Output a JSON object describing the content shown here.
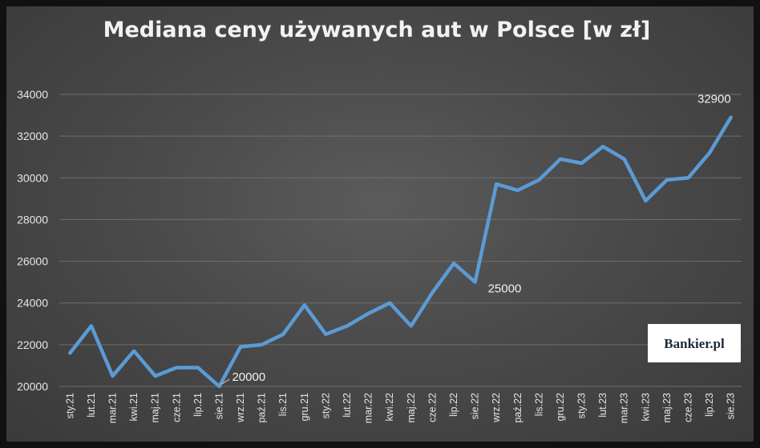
{
  "watermark": "Bankier.pl",
  "chart_data": {
    "type": "line",
    "title": "Mediana ceny używanych aut w Polsce [w zł]",
    "xlabel": "",
    "ylabel": "",
    "ylim": [
      20000,
      34000
    ],
    "yticks": [
      20000,
      22000,
      24000,
      26000,
      28000,
      30000,
      32000,
      34000
    ],
    "ytick_labels": [
      "20000",
      "22000",
      "24000",
      "26000",
      "28000",
      "30000",
      "32000",
      "34000"
    ],
    "grid": true,
    "legend": "none",
    "line_color": "#5b9bd5",
    "categories": [
      "sty.21",
      "lut.21",
      "mar.21",
      "kwi.21",
      "maj.21",
      "cze.21",
      "lip.21",
      "sie.21",
      "wrz.21",
      "paź.21",
      "lis.21",
      "gru.21",
      "sty.22",
      "lut.22",
      "mar.22",
      "kwi.22",
      "maj.22",
      "cze.22",
      "lip.22",
      "sie.22",
      "wrz.22",
      "paź.22",
      "lis.22",
      "gru.22",
      "sty.23",
      "lut.23",
      "mar.23",
      "kwi.23",
      "maj.23",
      "cze.23",
      "lip.23",
      "sie.23"
    ],
    "series": [
      {
        "values": [
          21600,
          22900,
          20500,
          21700,
          20500,
          20900,
          20900,
          20000,
          21900,
          22000,
          22500,
          23900,
          22500,
          22900,
          23500,
          24000,
          22900,
          24500,
          25900,
          25000,
          29700,
          29400,
          29900,
          30900,
          30700,
          31500,
          30900,
          28900,
          29900,
          30000,
          31200,
          32900
        ]
      }
    ],
    "annotations": [
      {
        "index": 7,
        "text": "20000"
      },
      {
        "index": 19,
        "text": "25000"
      },
      {
        "index": 31,
        "text": "32900"
      }
    ]
  }
}
